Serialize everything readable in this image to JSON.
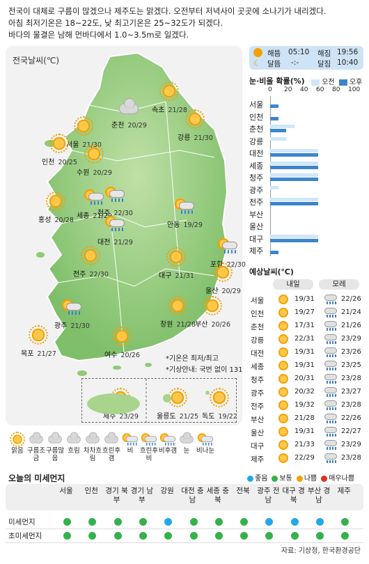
{
  "headline": [
    "전국이 대체로 구름이 많겠으나 제주도는 맑겠다. 오전부터 저녁사이 곳곳에 소나기가 내리겠다.",
    "아침 최저기온은 18~22도, 낮 최고기온은 25~32도가 되겠다.",
    "바다의 물결은 남해 먼바다에서 1.0~3.5m로 일겠다."
  ],
  "map": {
    "title": "전국날씨(℃)",
    "cities": [
      {
        "name": "속초",
        "temp": "21/28",
        "icon": "sun"
      },
      {
        "name": "춘천",
        "temp": "20/29",
        "icon": "cloud"
      },
      {
        "name": "강릉",
        "temp": "21/30",
        "icon": "sun"
      },
      {
        "name": "서울",
        "temp": "21/30",
        "icon": "sun"
      },
      {
        "name": "인천",
        "temp": "20/25",
        "icon": "sun"
      },
      {
        "name": "수원",
        "temp": "20/29",
        "icon": "sun"
      },
      {
        "name": "홍성",
        "temp": "20/28",
        "icon": "sun"
      },
      {
        "name": "세종",
        "temp": "21/29",
        "icon": "shower"
      },
      {
        "name": "청주",
        "temp": "22/30",
        "icon": "shower"
      },
      {
        "name": "대전",
        "temp": "21/29",
        "icon": "shower"
      },
      {
        "name": "안동",
        "temp": "19/29",
        "icon": "shower"
      },
      {
        "name": "포항",
        "temp": "22/30",
        "icon": "shower"
      },
      {
        "name": "전주",
        "temp": "22/30",
        "icon": "sun"
      },
      {
        "name": "대구",
        "temp": "21/31",
        "icon": "sun"
      },
      {
        "name": "울산",
        "temp": "20/29",
        "icon": "sun"
      },
      {
        "name": "광주",
        "temp": "21/30",
        "icon": "shower"
      },
      {
        "name": "창원",
        "temp": "21/28",
        "icon": "sun"
      },
      {
        "name": "부산",
        "temp": "20/26",
        "icon": "sun"
      },
      {
        "name": "목포",
        "temp": "21/27",
        "icon": "sun"
      },
      {
        "name": "여수",
        "temp": "20/26",
        "icon": "sun"
      }
    ],
    "islands": [
      {
        "name": "제주",
        "temp": "23/29"
      },
      {
        "name": "울릉도",
        "temp": "21/25"
      },
      {
        "name": "독도",
        "temp": "19/22"
      }
    ],
    "notes": [
      "*기온은 최저/최고",
      "*기상안내: 국번 없이 131"
    ]
  },
  "sun_moon": {
    "sunrise_label": "해뜸",
    "sunrise": "05:10",
    "sunset_label": "해짐",
    "sunset": "19:56",
    "moonrise_label": "달뜸",
    "moonrise": "-:-",
    "moonset_label": "달짐",
    "moonset": "10:40"
  },
  "precip": {
    "title": "눈·비올 확률(%)",
    "legend_am": "오전",
    "legend_pm": "오후",
    "axis_ticks": [
      "0",
      "20",
      "40",
      "60",
      "80",
      "100"
    ],
    "colors": {
      "am": "#cfe7f7",
      "pm": "#3d86cc"
    },
    "rows": [
      {
        "city": "서울",
        "am": 0,
        "pm": 10
      },
      {
        "city": "인천",
        "am": 0,
        "pm": 10
      },
      {
        "city": "춘천",
        "am": 30,
        "pm": 20
      },
      {
        "city": "강릉",
        "am": 20,
        "pm": 0
      },
      {
        "city": "대전",
        "am": 60,
        "pm": 60
      },
      {
        "city": "세종",
        "am": 60,
        "pm": 60
      },
      {
        "city": "청주",
        "am": 60,
        "pm": 60
      },
      {
        "city": "광주",
        "am": 10,
        "pm": 0
      },
      {
        "city": "전주",
        "am": 60,
        "pm": 60
      },
      {
        "city": "부산",
        "am": 0,
        "pm": 0
      },
      {
        "city": "울산",
        "am": 0,
        "pm": 0
      },
      {
        "city": "대구",
        "am": 60,
        "pm": 60
      },
      {
        "city": "제주",
        "am": 0,
        "pm": 10
      }
    ]
  },
  "forecast": {
    "title": "예상날씨(℃)",
    "col1": "내일",
    "col2": "모레",
    "rows": [
      {
        "city": "서울",
        "t1": "19/31",
        "t2": "22/26"
      },
      {
        "city": "인천",
        "t1": "19/27",
        "t2": "21/24"
      },
      {
        "city": "춘천",
        "t1": "17/31",
        "t2": "21/26"
      },
      {
        "city": "강릉",
        "t1": "22/31",
        "t2": "23/29"
      },
      {
        "city": "대전",
        "t1": "19/31",
        "t2": "23/26"
      },
      {
        "city": "세종",
        "t1": "19/31",
        "t2": "23/25"
      },
      {
        "city": "청주",
        "t1": "20/31",
        "t2": "23/28"
      },
      {
        "city": "광주",
        "t1": "20/32",
        "t2": "23/27"
      },
      {
        "city": "전주",
        "t1": "19/32",
        "t2": "23/28"
      },
      {
        "city": "부산",
        "t1": "21/28",
        "t2": "22/26"
      },
      {
        "city": "울산",
        "t1": "19/31",
        "t2": "22/27"
      },
      {
        "city": "대구",
        "t1": "21/33",
        "t2": "23/29"
      },
      {
        "city": "제주",
        "t1": "22/29",
        "t2": "23/28"
      }
    ]
  },
  "legend": [
    {
      "label": "맑음",
      "icon": "sun"
    },
    {
      "label": "구름조금",
      "icon": "sun-cloud"
    },
    {
      "label": "구름많음",
      "icon": "cloud"
    },
    {
      "label": "흐림",
      "icon": "cloud-dark"
    },
    {
      "label": "차차흐림",
      "icon": "sun-cloud"
    },
    {
      "label": "흐린후갬",
      "icon": "cloud-sun"
    },
    {
      "label": "비",
      "icon": "rain"
    },
    {
      "label": "흐린후비",
      "icon": "cloud-rain"
    },
    {
      "label": "비후갬",
      "icon": "rain-sun"
    },
    {
      "label": "눈",
      "icon": "snow"
    },
    {
      "label": "비나눈",
      "icon": "sleet"
    }
  ],
  "dust": {
    "title": "오늘의 미세먼지",
    "legend": [
      {
        "label": "좋음",
        "color": "#22a8e8"
      },
      {
        "label": "보통",
        "color": "#34b24a"
      },
      {
        "label": "나쁨",
        "color": "#f5a000"
      },
      {
        "label": "매우나쁨",
        "color": "#e0301e"
      }
    ],
    "regions": [
      "서울",
      "인천",
      "경기 북부",
      "경기 남부",
      "강원",
      "대전 충남",
      "세종 충북",
      "전북",
      "광주 전남",
      "대구 경북",
      "부산 경남",
      "제주"
    ],
    "rows": [
      {
        "label": "미세먼지",
        "levels": [
          "보통",
          "보통",
          "보통",
          "보통",
          "좋음",
          "보통",
          "보통",
          "보통",
          "좋음",
          "좋음",
          "좋음",
          "보통"
        ]
      },
      {
        "label": "초미세먼지",
        "levels": [
          "보통",
          "보통",
          "보통",
          "보통",
          "보통",
          "보통",
          "보통",
          "보통",
          "보통",
          "보통",
          "보통",
          "보통"
        ]
      }
    ]
  },
  "source": "자료: 기상청, 한국환경공단"
}
